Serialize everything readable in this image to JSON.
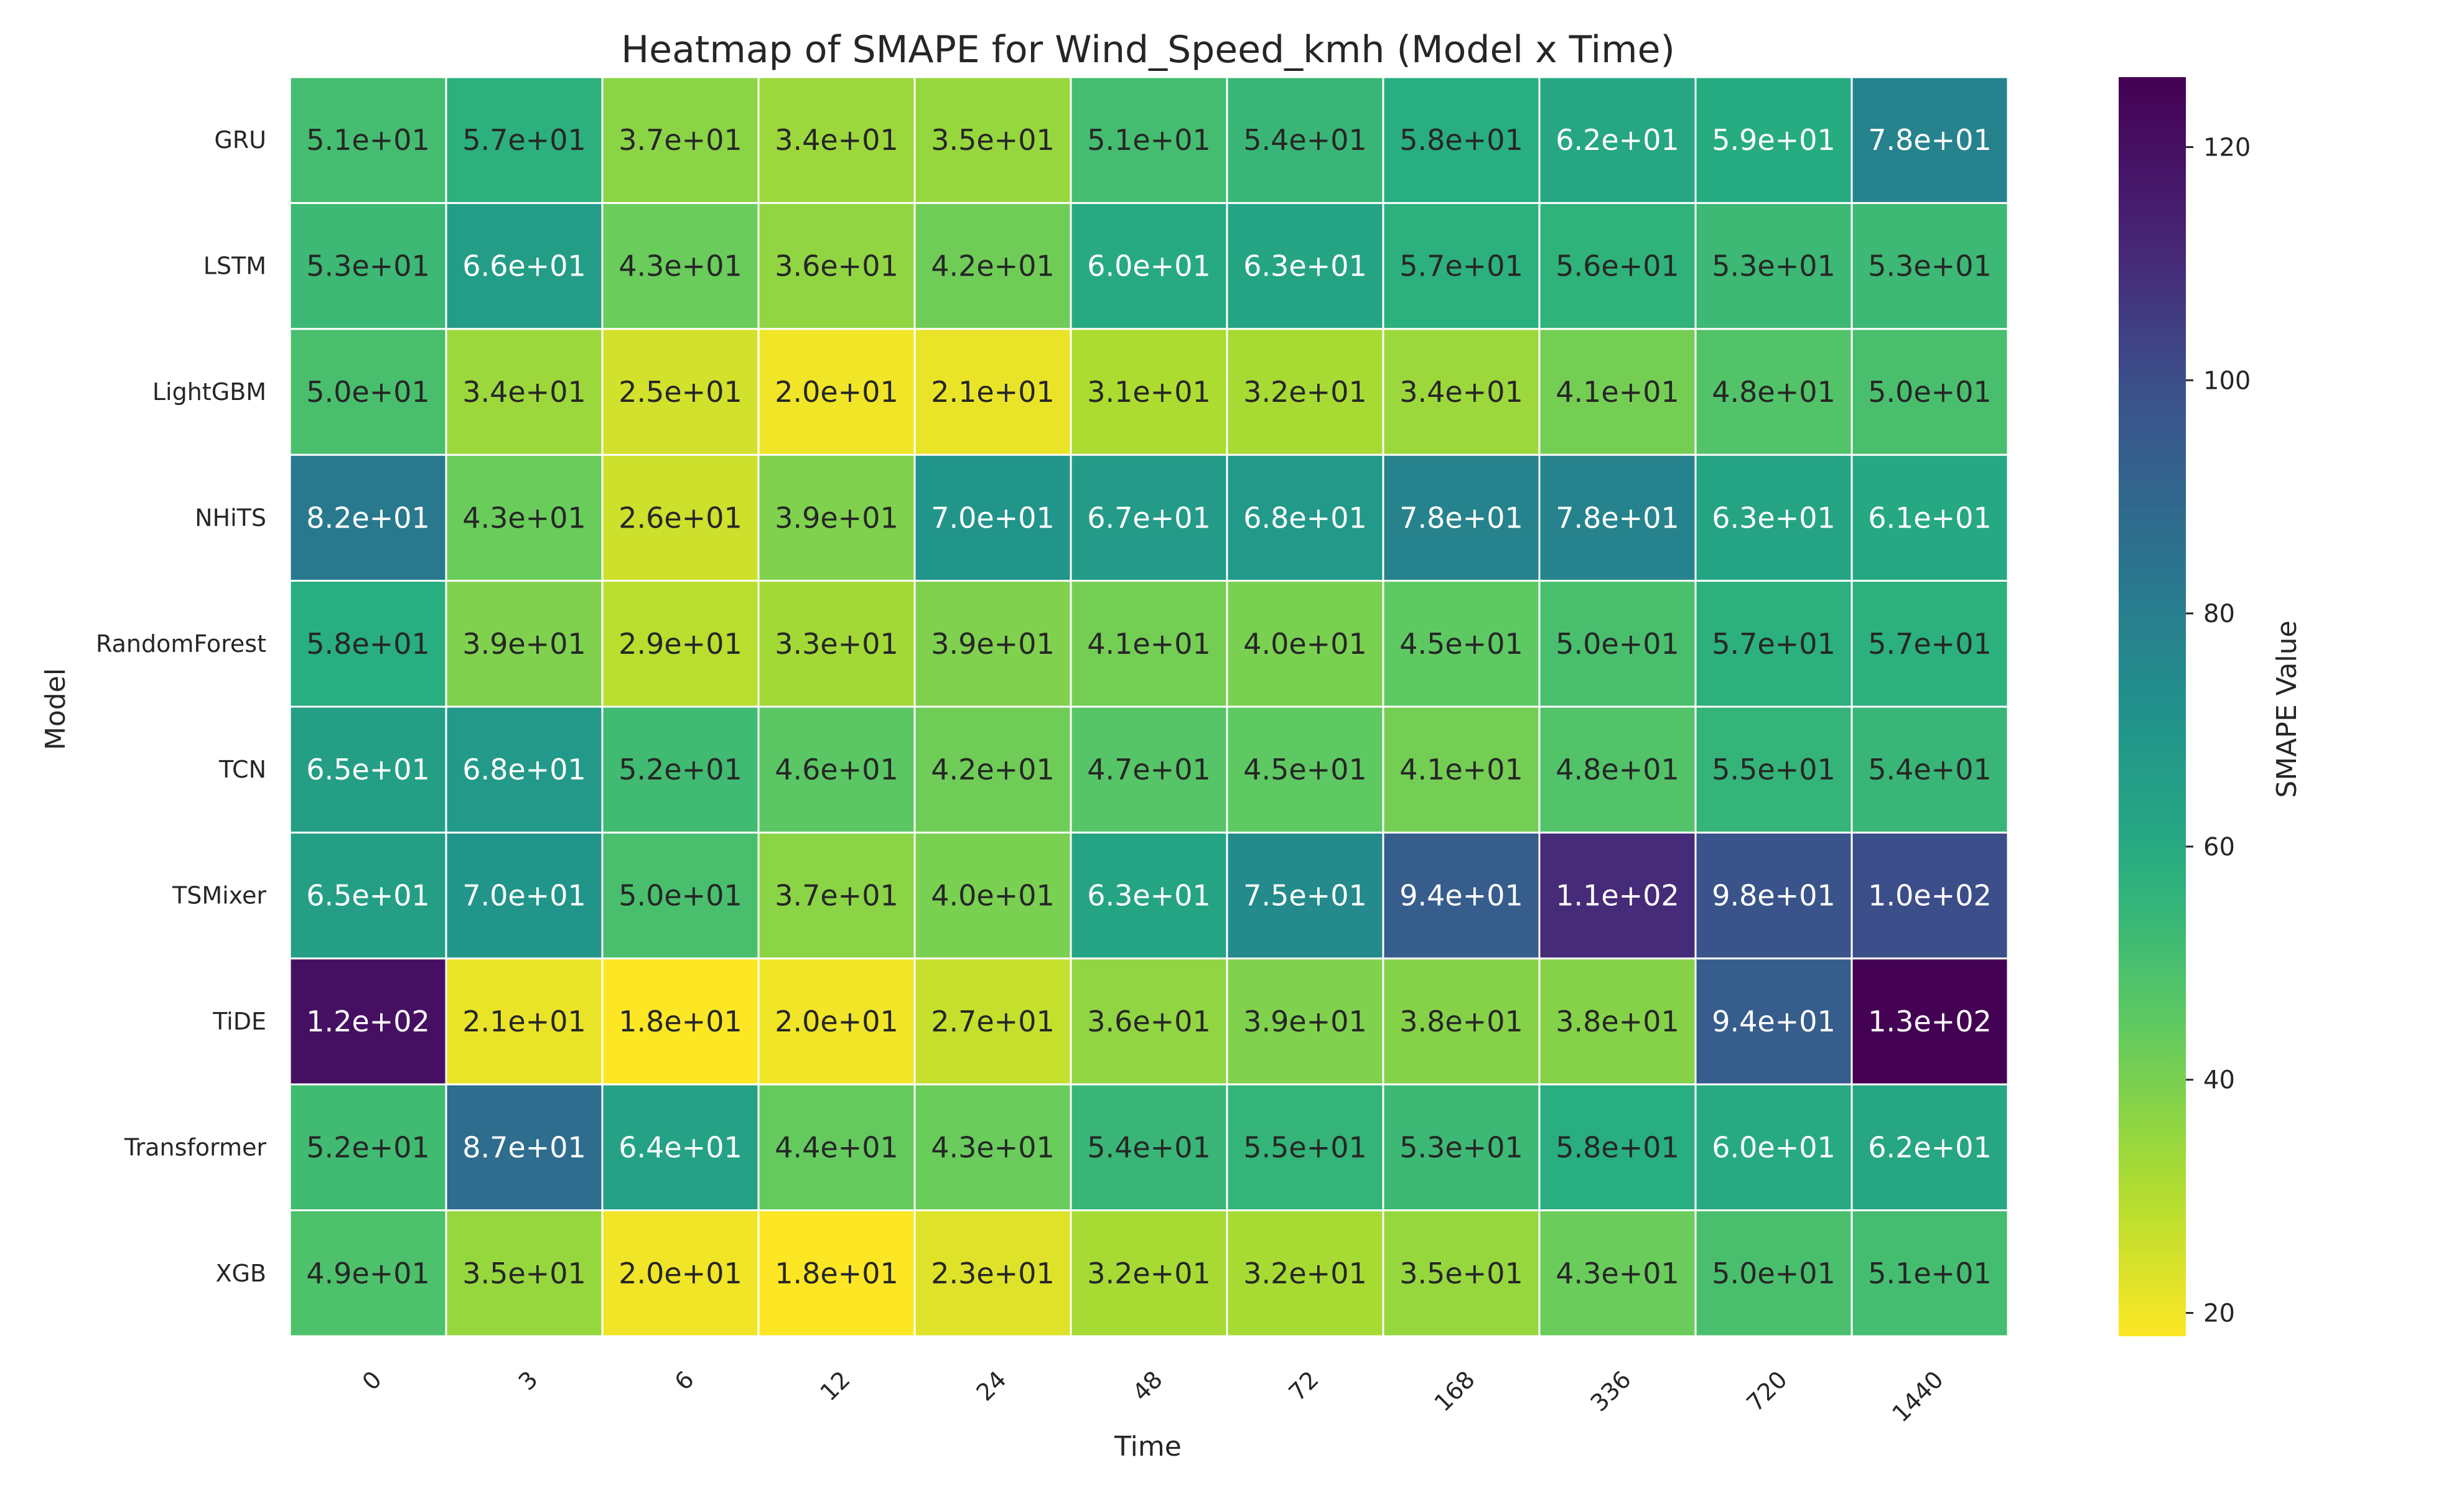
{
  "chart_data": {
    "type": "heatmap",
    "title": "Heatmap of SMAPE for Wind_Speed_kmh (Model x Time)",
    "xlabel": "Time",
    "ylabel": "Model",
    "colorbar_label": "SMAPE Value",
    "colormap": "viridis_r",
    "vmin": 18,
    "vmax": 126,
    "colorbar_ticks": [
      20,
      40,
      60,
      80,
      100,
      120
    ],
    "x_categories": [
      "0",
      "3",
      "6",
      "12",
      "24",
      "48",
      "72",
      "168",
      "336",
      "720",
      "1440"
    ],
    "y_categories": [
      "GRU",
      "LSTM",
      "LightGBM",
      "NHiTS",
      "RandomForest",
      "TCN",
      "TSMixer",
      "TiDE",
      "Transformer",
      "XGB"
    ],
    "values": [
      [
        51,
        57,
        37,
        34,
        35,
        51,
        54,
        58,
        62,
        59,
        78
      ],
      [
        53,
        66,
        43,
        36,
        42,
        60,
        63,
        57,
        56,
        53,
        53
      ],
      [
        50,
        34,
        25,
        20,
        21,
        31,
        32,
        34,
        41,
        48,
        50
      ],
      [
        82,
        43,
        26,
        39,
        70,
        67,
        68,
        78,
        78,
        63,
        61
      ],
      [
        58,
        39,
        29,
        33,
        39,
        41,
        40,
        45,
        50,
        57,
        57
      ],
      [
        65,
        68,
        52,
        46,
        42,
        47,
        45,
        41,
        48,
        55,
        54
      ],
      [
        65,
        70,
        50,
        37,
        40,
        63,
        75,
        94,
        110,
        98,
        100
      ],
      [
        120,
        21,
        18,
        20,
        27,
        36,
        39,
        38,
        38,
        94,
        126
      ],
      [
        52,
        87,
        64,
        44,
        43,
        54,
        55,
        53,
        58,
        60,
        62
      ],
      [
        49,
        35,
        20,
        18,
        23,
        32,
        32,
        35,
        43,
        50,
        51
      ]
    ],
    "labels": [
      [
        "5.1e+01",
        "5.7e+01",
        "3.7e+01",
        "3.4e+01",
        "3.5e+01",
        "5.1e+01",
        "5.4e+01",
        "5.8e+01",
        "6.2e+01",
        "5.9e+01",
        "7.8e+01"
      ],
      [
        "5.3e+01",
        "6.6e+01",
        "4.3e+01",
        "3.6e+01",
        "4.2e+01",
        "6.0e+01",
        "6.3e+01",
        "5.7e+01",
        "5.6e+01",
        "5.3e+01",
        "5.3e+01"
      ],
      [
        "5.0e+01",
        "3.4e+01",
        "2.5e+01",
        "2.0e+01",
        "2.1e+01",
        "3.1e+01",
        "3.2e+01",
        "3.4e+01",
        "4.1e+01",
        "4.8e+01",
        "5.0e+01"
      ],
      [
        "8.2e+01",
        "4.3e+01",
        "2.6e+01",
        "3.9e+01",
        "7.0e+01",
        "6.7e+01",
        "6.8e+01",
        "7.8e+01",
        "7.8e+01",
        "6.3e+01",
        "6.1e+01"
      ],
      [
        "5.8e+01",
        "3.9e+01",
        "2.9e+01",
        "3.3e+01",
        "3.9e+01",
        "4.1e+01",
        "4.0e+01",
        "4.5e+01",
        "5.0e+01",
        "5.7e+01",
        "5.7e+01"
      ],
      [
        "6.5e+01",
        "6.8e+01",
        "5.2e+01",
        "4.6e+01",
        "4.2e+01",
        "4.7e+01",
        "4.5e+01",
        "4.1e+01",
        "4.8e+01",
        "5.5e+01",
        "5.4e+01"
      ],
      [
        "6.5e+01",
        "7.0e+01",
        "5.0e+01",
        "3.7e+01",
        "4.0e+01",
        "6.3e+01",
        "7.5e+01",
        "9.4e+01",
        "1.1e+02",
        "9.8e+01",
        "1.0e+02"
      ],
      [
        "1.2e+02",
        "2.1e+01",
        "1.8e+01",
        "2.0e+01",
        "2.7e+01",
        "3.6e+01",
        "3.9e+01",
        "3.8e+01",
        "3.8e+01",
        "9.4e+01",
        "1.3e+02"
      ],
      [
        "5.2e+01",
        "8.7e+01",
        "6.4e+01",
        "4.4e+01",
        "4.3e+01",
        "5.4e+01",
        "5.5e+01",
        "5.3e+01",
        "5.8e+01",
        "6.0e+01",
        "6.2e+01"
      ],
      [
        "4.9e+01",
        "3.5e+01",
        "2.0e+01",
        "1.8e+01",
        "2.3e+01",
        "3.2e+01",
        "3.2e+01",
        "3.5e+01",
        "4.3e+01",
        "5.0e+01",
        "5.1e+01"
      ]
    ]
  }
}
